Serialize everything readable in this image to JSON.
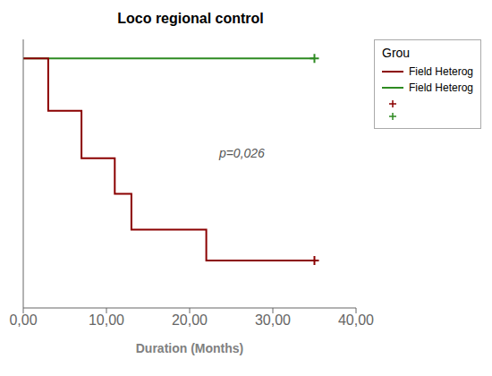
{
  "chart_data": {
    "type": "step",
    "title": "Loco regional control",
    "x_label": "Duration (Months)",
    "xlim": [
      0,
      40
    ],
    "xticks": [
      {
        "value": 0,
        "label": "0,00"
      },
      {
        "value": 10,
        "label": "10,00"
      },
      {
        "value": 20,
        "label": "20,00"
      },
      {
        "value": 30,
        "label": "30,00"
      },
      {
        "value": 40,
        "label": "40,00"
      }
    ],
    "ylim": [
      -0.05,
      1.08
    ],
    "tick_labels": "x",
    "grid": false,
    "legend_title": "Grou",
    "annotations": [
      {
        "text": "p=0,026",
        "x": 23,
        "y": 0.6
      }
    ],
    "series": [
      {
        "name": "Field Heterog",
        "color": "#2e8b22",
        "x": [
          0,
          35
        ],
        "values": [
          1.0,
          1.0
        ],
        "marker": "plus",
        "censor_x": [
          35
        ],
        "censor_y": [
          1.0
        ]
      },
      {
        "name": "Field Heterog",
        "color": "#8B0000",
        "x": [
          0,
          3,
          3,
          7,
          7,
          11,
          11,
          13,
          13,
          22,
          22,
          35
        ],
        "values": [
          1.0,
          1.0,
          0.78,
          0.78,
          0.58,
          0.58,
          0.43,
          0.43,
          0.28,
          0.28,
          0.15,
          0.15
        ],
        "marker": "plus",
        "censor_x": [
          35
        ],
        "censor_y": [
          0.15
        ]
      }
    ]
  }
}
